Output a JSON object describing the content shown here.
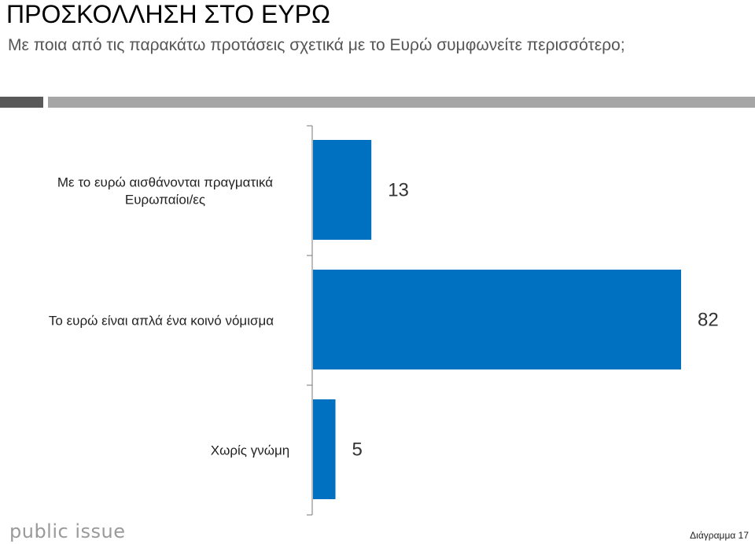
{
  "header": {
    "title": "ΠΡΟΣΚΟΛΛΗΣΗ ΣΤΟ ΕΥΡΩ",
    "subtitle": "Με ποια από τις παρακάτω προτάσεις σχετικά με το Ευρώ συμφωνείτε περισσότερο;"
  },
  "colors": {
    "bar": "#0070c0",
    "accent_dark": "#595959",
    "accent_light": "#a6a6a6"
  },
  "chart_data": {
    "type": "bar",
    "orientation": "horizontal",
    "categories": [
      "Με το ευρώ αισθάνονται πραγματικά Ευρωπαίοι/ες",
      "Το ευρώ είναι απλά ένα κοινό νόμισμα",
      "Χωρίς γνώμη"
    ],
    "values": [
      13,
      82,
      5
    ],
    "data_labels": [
      "13",
      "82",
      "5"
    ],
    "xlim": [
      0,
      100
    ],
    "grid": false,
    "legend": "none"
  },
  "footer": {
    "logo_text": "public issue",
    "chart_label": "Διάγραμμα 17"
  }
}
